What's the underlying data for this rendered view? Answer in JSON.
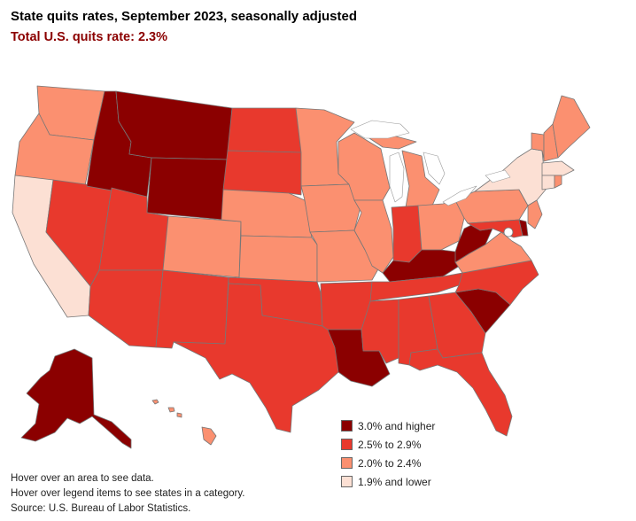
{
  "title": "State quits rates, September 2023, seasonally adjusted",
  "subtitle": "Total U.S. quits rate: 2.3%",
  "colors": {
    "high": "#8b0000",
    "mid_high": "#e8392d",
    "mid_low": "#fb9070",
    "low": "#fce0d4",
    "border": "#777777"
  },
  "legend": {
    "items": [
      {
        "label": "3.0% and higher",
        "color": "#8b0000"
      },
      {
        "label": "2.5% to 2.9%",
        "color": "#e8392d"
      },
      {
        "label": "2.0% to 2.4%",
        "color": "#fb9070"
      },
      {
        "label": "1.9% and lower",
        "color": "#fce0d4"
      }
    ]
  },
  "notes": {
    "line1": "Hover over an area to see data.",
    "line2": "Hover over legend items to see states in a category.",
    "source": "Source: U.S. Bureau of Labor Statistics."
  }
}
